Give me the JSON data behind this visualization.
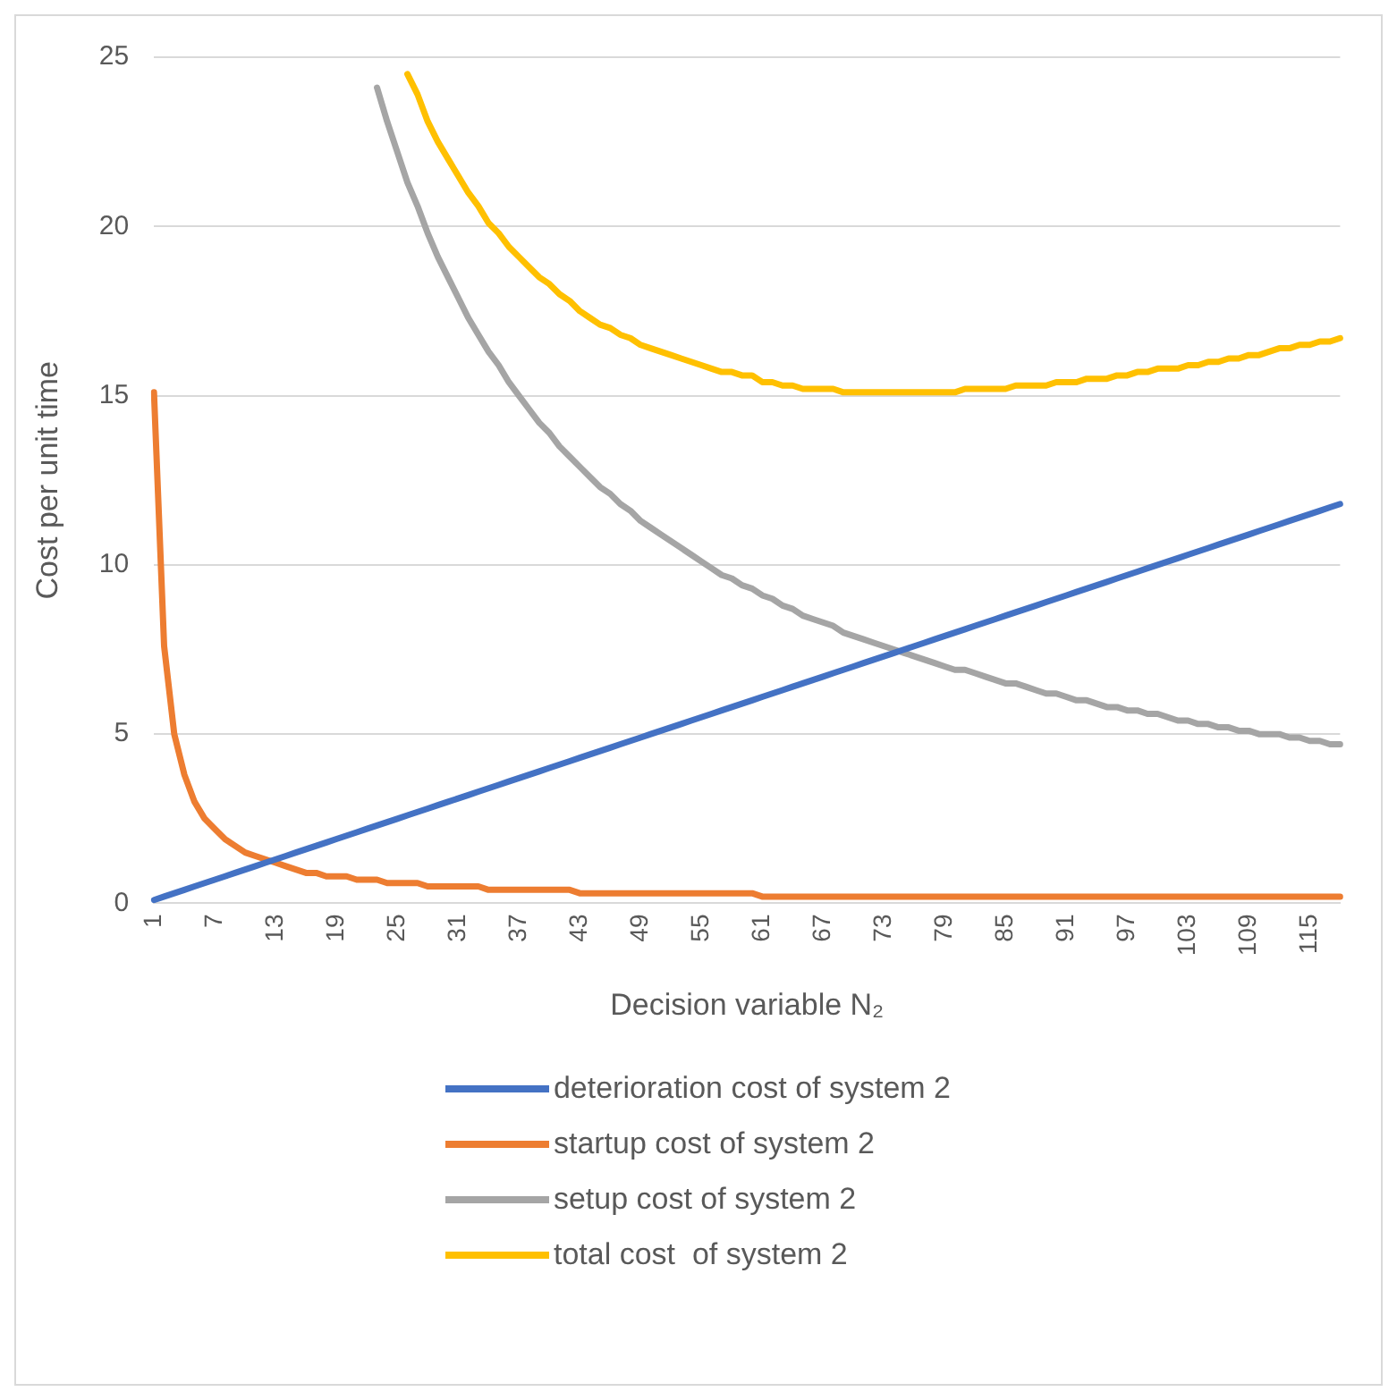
{
  "chart_data": {
    "type": "line",
    "xlabel": "Decision variable N₂",
    "ylabel": "Cost per unit time",
    "categories": [
      "1",
      null,
      null,
      null,
      null,
      null,
      "7",
      null,
      null,
      null,
      null,
      null,
      "13",
      null,
      null,
      null,
      null,
      null,
      "19",
      null,
      null,
      null,
      null,
      null,
      "25",
      null,
      null,
      null,
      null,
      null,
      "31",
      null,
      null,
      null,
      null,
      null,
      "37",
      null,
      null,
      null,
      null,
      null,
      "43",
      null,
      null,
      null,
      null,
      null,
      "49",
      null,
      null,
      null,
      null,
      null,
      "55",
      null,
      null,
      null,
      null,
      null,
      "61",
      null,
      null,
      null,
      null,
      null,
      "67",
      null,
      null,
      null,
      null,
      null,
      "73",
      null,
      null,
      null,
      null,
      null,
      "79",
      null,
      null,
      null,
      null,
      null,
      "85",
      null,
      null,
      null,
      null,
      null,
      "91",
      null,
      null,
      null,
      null,
      null,
      "97",
      null,
      null,
      null,
      null,
      null,
      "103",
      null,
      null,
      null,
      null,
      null,
      "109",
      null,
      null,
      null,
      null,
      null,
      "115",
      null,
      null,
      null
    ],
    "series": [
      {
        "name": "deterioration cost of system 2",
        "color": "#4472c4",
        "values": [
          0.1,
          0.2,
          0.3,
          0.4,
          0.5,
          0.6,
          0.7,
          0.8,
          0.9,
          1.0,
          1.1,
          1.2,
          1.3,
          1.4,
          1.5,
          1.6,
          1.7,
          1.8,
          1.9,
          2.0,
          2.1,
          2.2,
          2.3,
          2.4,
          2.5,
          2.6,
          2.7,
          2.8,
          2.9,
          3.0,
          3.1,
          3.2,
          3.3,
          3.4,
          3.5,
          3.6,
          3.7,
          3.8,
          3.9,
          4.0,
          4.1,
          4.2,
          4.3,
          4.4,
          4.5,
          4.6,
          4.7,
          4.8,
          4.9,
          5.0,
          5.1,
          5.2,
          5.3,
          5.4,
          5.5,
          5.6,
          5.7,
          5.8,
          5.9,
          6.0,
          6.1,
          6.2,
          6.3,
          6.4,
          6.5,
          6.6,
          6.7,
          6.8,
          6.9,
          7.0,
          7.1,
          7.2,
          7.3,
          7.4,
          7.5,
          7.6,
          7.7,
          7.8,
          7.9,
          8.0,
          8.1,
          8.2,
          8.3,
          8.4,
          8.5,
          8.6,
          8.7,
          8.8,
          8.9,
          9.0,
          9.1,
          9.2,
          9.3,
          9.4,
          9.5,
          9.6,
          9.7,
          9.8,
          9.9,
          10.0,
          10.1,
          10.2,
          10.3,
          10.4,
          10.5,
          10.6,
          10.7,
          10.8,
          10.9,
          11.0,
          11.1,
          11.2,
          11.3,
          11.4,
          11.5,
          11.6,
          11.7,
          11.8
        ]
      },
      {
        "name": "startup cost of system 2",
        "color": "#ed7d31",
        "values": [
          15.1,
          7.6,
          5.0,
          3.8,
          3.0,
          2.5,
          2.2,
          1.9,
          1.7,
          1.5,
          1.4,
          1.3,
          1.2,
          1.1,
          1.0,
          0.9,
          0.9,
          0.8,
          0.8,
          0.8,
          0.7,
          0.7,
          0.7,
          0.6,
          0.6,
          0.6,
          0.6,
          0.5,
          0.5,
          0.5,
          0.5,
          0.5,
          0.5,
          0.4,
          0.4,
          0.4,
          0.4,
          0.4,
          0.4,
          0.4,
          0.4,
          0.4,
          0.3,
          0.3,
          0.3,
          0.3,
          0.3,
          0.3,
          0.3,
          0.3,
          0.3,
          0.3,
          0.3,
          0.3,
          0.3,
          0.3,
          0.3,
          0.3,
          0.3,
          0.3,
          0.2,
          0.2,
          0.2,
          0.2,
          0.2,
          0.2,
          0.2,
          0.2,
          0.2,
          0.2,
          0.2,
          0.2,
          0.2,
          0.2,
          0.2,
          0.2,
          0.2,
          0.2,
          0.2,
          0.2,
          0.2,
          0.2,
          0.2,
          0.2,
          0.2,
          0.2,
          0.2,
          0.2,
          0.2,
          0.2,
          0.2,
          0.2,
          0.2,
          0.2,
          0.2,
          0.2,
          0.2,
          0.2,
          0.2,
          0.2,
          0.2,
          0.2,
          0.2,
          0.2,
          0.2,
          0.2,
          0.2,
          0.2,
          0.2,
          0.2,
          0.2,
          0.2,
          0.2,
          0.2,
          0.2,
          0.2,
          0.2,
          0.2
        ]
      },
      {
        "name": "setup cost of system 2",
        "color": "#a5a5a5",
        "values": [
          null,
          null,
          null,
          null,
          null,
          null,
          null,
          null,
          null,
          null,
          null,
          null,
          null,
          null,
          null,
          null,
          null,
          null,
          null,
          null,
          null,
          null,
          24.1,
          23.1,
          22.2,
          21.3,
          20.6,
          19.8,
          19.1,
          18.5,
          17.9,
          17.3,
          16.8,
          16.3,
          15.9,
          15.4,
          15.0,
          14.6,
          14.2,
          13.9,
          13.5,
          13.2,
          12.9,
          12.6,
          12.3,
          12.1,
          11.8,
          11.6,
          11.3,
          11.1,
          10.9,
          10.7,
          10.5,
          10.3,
          10.1,
          9.9,
          9.7,
          9.6,
          9.4,
          9.3,
          9.1,
          9.0,
          8.8,
          8.7,
          8.5,
          8.4,
          8.3,
          8.2,
          8.0,
          7.9,
          7.8,
          7.7,
          7.6,
          7.5,
          7.4,
          7.3,
          7.2,
          7.1,
          7.0,
          6.9,
          6.9,
          6.8,
          6.7,
          6.6,
          6.5,
          6.5,
          6.4,
          6.3,
          6.2,
          6.2,
          6.1,
          6.0,
          6.0,
          5.9,
          5.8,
          5.8,
          5.7,
          5.7,
          5.6,
          5.6,
          5.5,
          5.4,
          5.4,
          5.3,
          5.3,
          5.2,
          5.2,
          5.1,
          5.1,
          5.0,
          5.0,
          5.0,
          4.9,
          4.9,
          4.8,
          4.8,
          4.7,
          4.7
        ]
      },
      {
        "name": "total cost  of system 2",
        "color": "#ffc000",
        "values": [
          null,
          null,
          null,
          null,
          null,
          null,
          null,
          null,
          null,
          null,
          null,
          null,
          null,
          null,
          null,
          null,
          null,
          null,
          null,
          null,
          null,
          null,
          null,
          null,
          null,
          24.5,
          23.9,
          23.1,
          22.5,
          22.0,
          21.5,
          21.0,
          20.6,
          20.1,
          19.8,
          19.4,
          19.1,
          18.8,
          18.5,
          18.3,
          18.0,
          17.8,
          17.5,
          17.3,
          17.1,
          17.0,
          16.8,
          16.7,
          16.5,
          16.4,
          16.3,
          16.2,
          16.1,
          16.0,
          15.9,
          15.8,
          15.7,
          15.7,
          15.6,
          15.6,
          15.4,
          15.4,
          15.3,
          15.3,
          15.2,
          15.2,
          15.2,
          15.2,
          15.1,
          15.1,
          15.1,
          15.1,
          15.1,
          15.1,
          15.1,
          15.1,
          15.1,
          15.1,
          15.1,
          15.1,
          15.2,
          15.2,
          15.2,
          15.2,
          15.2,
          15.3,
          15.3,
          15.3,
          15.3,
          15.4,
          15.4,
          15.4,
          15.5,
          15.5,
          15.5,
          15.6,
          15.6,
          15.7,
          15.7,
          15.8,
          15.8,
          15.8,
          15.9,
          15.9,
          16.0,
          16.0,
          16.1,
          16.1,
          16.2,
          16.2,
          16.3,
          16.4,
          16.4,
          16.5,
          16.5,
          16.6,
          16.6,
          16.7
        ]
      }
    ],
    "ylim": [
      0,
      25
    ],
    "yticks": [
      0,
      5,
      10,
      15,
      20,
      25
    ],
    "grid": "y",
    "legend": "bottom",
    "marker": "none",
    "line_style": "solid"
  }
}
